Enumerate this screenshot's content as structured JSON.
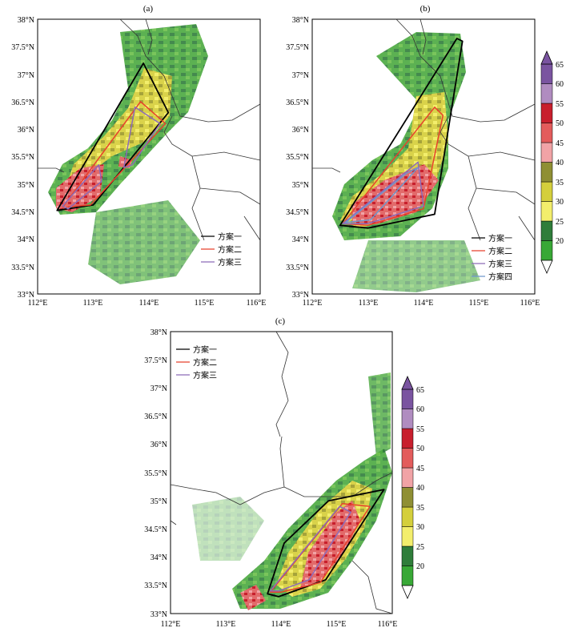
{
  "figure": {
    "panels": [
      {
        "id": "a",
        "label": "(a)",
        "lat_ticks": [
          "38°N",
          "37.5°N",
          "37°N",
          "36.5°N",
          "36°N",
          "35.5°N",
          "35°N",
          "34.5°N",
          "34°N",
          "33.5°N",
          "33°N"
        ],
        "lon_ticks": [
          "112°E",
          "113°E",
          "114°E",
          "115°E",
          "116°E"
        ],
        "legend": [
          {
            "label": "方案一",
            "color": "#000000"
          },
          {
            "label": "方案二",
            "color": "#e8412c"
          },
          {
            "label": "方案三",
            "color": "#8c6bb8"
          }
        ],
        "polygons": [
          {
            "color": "#000000",
            "points": [
              [
                112.35,
                34.52
              ],
              [
                113.9,
                37.2
              ],
              [
                114.35,
                36.3
              ],
              [
                113.0,
                34.62
              ]
            ]
          },
          {
            "color": "#e8412c",
            "points": [
              [
                112.45,
                34.58
              ],
              [
                113.85,
                36.5
              ],
              [
                114.3,
                36.1
              ],
              [
                112.95,
                34.62
              ]
            ]
          },
          {
            "color": "#8c6bb8",
            "points": [
              [
                112.45,
                34.6
              ],
              [
                113.1,
                35.35
              ],
              [
                113.15,
                35.05
              ],
              [
                112.55,
                34.55
              ]
            ]
          },
          {
            "color": "#8c6bb8",
            "points": [
              [
                113.55,
                35.3
              ],
              [
                113.75,
                36.4
              ],
              [
                114.2,
                36.1
              ],
              [
                113.7,
                35.35
              ]
            ]
          }
        ]
      },
      {
        "id": "b",
        "label": "(b)",
        "lat_ticks": [
          "38°N",
          "37.5°N",
          "37°N",
          "36.5°N",
          "36°N",
          "35.5°N",
          "35°N",
          "34.5°N",
          "34°N",
          "33.5°N",
          "33°N"
        ],
        "lon_ticks": [
          "112°E",
          "113°E",
          "114°E",
          "115°E",
          "116°E"
        ],
        "legend": [
          {
            "label": "方案一",
            "color": "#000000"
          },
          {
            "label": "方案二",
            "color": "#e8412c"
          },
          {
            "label": "方案三",
            "color": "#8c6bb8"
          },
          {
            "label": "方案四",
            "color": "#6f98cc"
          }
        ],
        "polygons": [
          {
            "color": "#000000",
            "points": [
              [
                112.5,
                34.25
              ],
              [
                114.6,
                37.65
              ],
              [
                114.7,
                37.6
              ],
              [
                114.2,
                34.45
              ],
              [
                113.0,
                34.2
              ]
            ]
          },
          {
            "color": "#e8412c",
            "points": [
              [
                112.55,
                34.28
              ],
              [
                114.2,
                36.4
              ],
              [
                114.35,
                36.25
              ],
              [
                114.0,
                34.55
              ],
              [
                113.0,
                34.25
              ]
            ]
          },
          {
            "color": "#8c6bb8",
            "points": [
              [
                112.55,
                34.28
              ],
              [
                113.6,
                35.15
              ],
              [
                113.9,
                35.4
              ],
              [
                114.0,
                34.6
              ],
              [
                113.0,
                34.28
              ]
            ]
          },
          {
            "color": "#6f98cc",
            "points": [
              [
                112.6,
                34.3
              ],
              [
                113.7,
                35.2
              ],
              [
                113.9,
                35.3
              ],
              [
                113.05,
                34.35
              ]
            ]
          }
        ]
      },
      {
        "id": "c",
        "label": "(c)",
        "lat_ticks": [
          "38°N",
          "37.5°N",
          "37°N",
          "36.5°N",
          "36°N",
          "35.5°N",
          "35°N",
          "34.5°N",
          "34°N",
          "33.5°N",
          "33°N"
        ],
        "lon_ticks": [
          "112°E",
          "113°E",
          "114°E",
          "115°E",
          "116°E"
        ],
        "legend": [
          {
            "label": "方案一",
            "color": "#000000"
          },
          {
            "label": "方案二",
            "color": "#e8412c"
          },
          {
            "label": "方案三",
            "color": "#8c6bb8"
          }
        ],
        "polygons": [
          {
            "color": "#000000",
            "points": [
              [
                113.75,
                33.35
              ],
              [
                114.05,
                34.25
              ],
              [
                114.85,
                35.0
              ],
              [
                115.85,
                35.2
              ],
              [
                114.8,
                33.6
              ],
              [
                113.95,
                33.3
              ]
            ]
          },
          {
            "color": "#e8412c",
            "points": [
              [
                113.8,
                33.38
              ],
              [
                115.1,
                34.95
              ],
              [
                115.6,
                34.9
              ],
              [
                114.7,
                33.55
              ],
              [
                114.0,
                33.38
              ]
            ]
          },
          {
            "color": "#8c6bb8",
            "points": [
              [
                113.8,
                33.4
              ],
              [
                115.05,
                34.9
              ],
              [
                115.25,
                34.8
              ],
              [
                114.5,
                33.6
              ],
              [
                113.95,
                33.4
              ]
            ]
          }
        ]
      }
    ],
    "colorbar": {
      "ticks": [
        "65",
        "60",
        "55",
        "50",
        "45",
        "40",
        "35",
        "30",
        "25",
        "20"
      ],
      "colors": [
        "#38a836",
        "#2f7d3a",
        "#f3ee6c",
        "#d4cf3c",
        "#8f8f34",
        "#f1a3a6",
        "#e35c5c",
        "#c81f2d",
        "#b08cc0",
        "#7a54a0"
      ]
    }
  }
}
